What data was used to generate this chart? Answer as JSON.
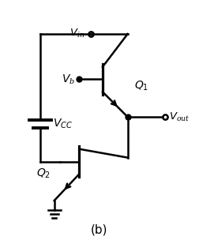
{
  "bg_color": "#ffffff",
  "fig_width": 2.52,
  "fig_height": 3.09,
  "dpi": 100,
  "label_b": "(b)"
}
